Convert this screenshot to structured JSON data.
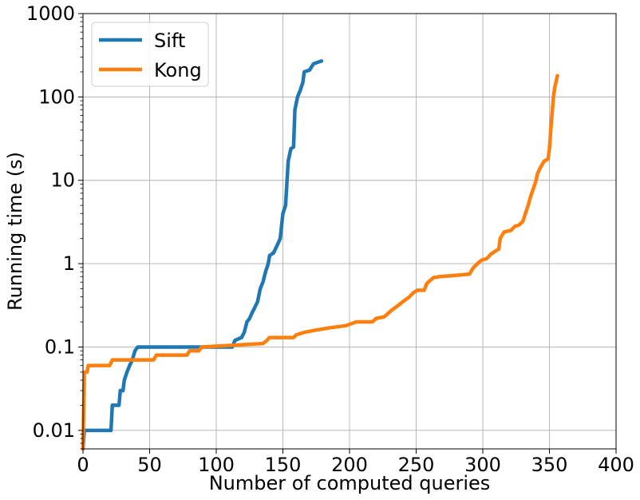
{
  "chart_data": {
    "type": "line",
    "xlabel": "Number of computed queries",
    "ylabel": "Running time (s)",
    "xlim": [
      0,
      400
    ],
    "ylim": [
      0.006,
      1000
    ],
    "yscale": "log",
    "grid": true,
    "legend_position": "top-left",
    "x_ticks": [
      {
        "value": 0,
        "label": "0"
      },
      {
        "value": 50,
        "label": "50"
      },
      {
        "value": 100,
        "label": "100"
      },
      {
        "value": 150,
        "label": "150"
      },
      {
        "value": 200,
        "label": "200"
      },
      {
        "value": 250,
        "label": "250"
      },
      {
        "value": 300,
        "label": "300"
      },
      {
        "value": 350,
        "label": "350"
      },
      {
        "value": 400,
        "label": "400"
      }
    ],
    "y_ticks": [
      {
        "value": 0.01,
        "label": "0.01"
      },
      {
        "value": 0.1,
        "label": "0.1"
      },
      {
        "value": 1,
        "label": "1"
      },
      {
        "value": 10,
        "label": "10"
      },
      {
        "value": 100,
        "label": "100"
      },
      {
        "value": 1000,
        "label": "1000"
      }
    ],
    "series": [
      {
        "name": "Sift",
        "color": "#1f77b4",
        "points": [
          [
            0,
            0.006
          ],
          [
            1,
            0.01
          ],
          [
            21,
            0.01
          ],
          [
            22,
            0.02
          ],
          [
            27,
            0.02
          ],
          [
            28,
            0.03
          ],
          [
            30,
            0.03
          ],
          [
            31,
            0.04
          ],
          [
            33,
            0.05
          ],
          [
            35,
            0.06
          ],
          [
            37,
            0.07
          ],
          [
            39,
            0.09
          ],
          [
            41,
            0.1
          ],
          [
            112,
            0.1
          ],
          [
            114,
            0.12
          ],
          [
            119,
            0.13
          ],
          [
            121,
            0.15
          ],
          [
            123,
            0.2
          ],
          [
            125,
            0.22
          ],
          [
            127,
            0.26
          ],
          [
            129,
            0.3
          ],
          [
            131,
            0.35
          ],
          [
            133,
            0.5
          ],
          [
            135,
            0.6
          ],
          [
            137,
            0.8
          ],
          [
            139,
            1.0
          ],
          [
            140,
            1.25
          ],
          [
            143,
            1.35
          ],
          [
            146,
            1.7
          ],
          [
            148,
            2.0
          ],
          [
            150,
            4.0
          ],
          [
            152,
            5.0
          ],
          [
            154,
            17
          ],
          [
            156,
            24
          ],
          [
            158,
            25
          ],
          [
            159,
            70
          ],
          [
            161,
            100
          ],
          [
            163,
            120
          ],
          [
            165,
            150
          ],
          [
            166,
            200
          ],
          [
            170,
            210
          ],
          [
            173,
            250
          ],
          [
            176,
            260
          ],
          [
            179,
            270
          ]
        ]
      },
      {
        "name": "Kong",
        "color": "#ff7f0e",
        "points": [
          [
            0,
            0.006
          ],
          [
            1,
            0.05
          ],
          [
            3,
            0.05
          ],
          [
            4,
            0.06
          ],
          [
            20,
            0.06
          ],
          [
            22,
            0.07
          ],
          [
            53,
            0.07
          ],
          [
            55,
            0.08
          ],
          [
            78,
            0.08
          ],
          [
            80,
            0.09
          ],
          [
            87,
            0.09
          ],
          [
            89,
            0.1
          ],
          [
            135,
            0.11
          ],
          [
            138,
            0.12
          ],
          [
            140,
            0.13
          ],
          [
            158,
            0.13
          ],
          [
            160,
            0.14
          ],
          [
            166,
            0.15
          ],
          [
            175,
            0.16
          ],
          [
            185,
            0.17
          ],
          [
            197,
            0.18
          ],
          [
            205,
            0.2
          ],
          [
            217,
            0.2
          ],
          [
            220,
            0.22
          ],
          [
            226,
            0.23
          ],
          [
            232,
            0.28
          ],
          [
            237,
            0.32
          ],
          [
            240,
            0.35
          ],
          [
            245,
            0.4
          ],
          [
            248,
            0.45
          ],
          [
            251,
            0.48
          ],
          [
            256,
            0.48
          ],
          [
            258,
            0.58
          ],
          [
            260,
            0.62
          ],
          [
            263,
            0.68
          ],
          [
            268,
            0.7
          ],
          [
            278,
            0.72
          ],
          [
            290,
            0.75
          ],
          [
            293,
            0.9
          ],
          [
            296,
            1.0
          ],
          [
            299,
            1.1
          ],
          [
            303,
            1.15
          ],
          [
            306,
            1.3
          ],
          [
            309,
            1.4
          ],
          [
            312,
            1.5
          ],
          [
            313,
            2.0
          ],
          [
            316,
            2.4
          ],
          [
            321,
            2.5
          ],
          [
            324,
            2.8
          ],
          [
            327,
            2.9
          ],
          [
            330,
            3.2
          ],
          [
            332,
            4.0
          ],
          [
            334,
            5.0
          ],
          [
            336,
            6.5
          ],
          [
            338,
            8.0
          ],
          [
            340,
            10.0
          ],
          [
            341,
            12.0
          ],
          [
            343,
            14.0
          ],
          [
            346,
            17.0
          ],
          [
            349,
            18.0
          ],
          [
            350,
            24.0
          ],
          [
            351,
            40.0
          ],
          [
            353,
            100.0
          ],
          [
            354,
            130.0
          ],
          [
            356,
            180.0
          ]
        ]
      }
    ]
  }
}
